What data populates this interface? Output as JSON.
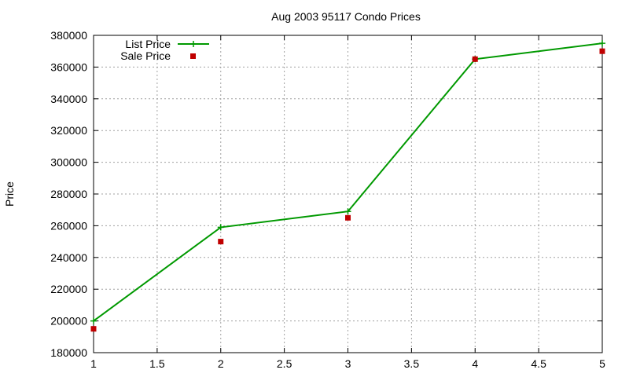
{
  "chart_data": {
    "type": "line",
    "title": "Aug 2003 95117 Condo Prices",
    "xlabel": "",
    "ylabel": "Price",
    "xlim": [
      1,
      5
    ],
    "ylim": [
      180000,
      380000
    ],
    "x_ticks": [
      "1",
      "1.5",
      "2",
      "2.5",
      "3",
      "3.5",
      "4",
      "4.5",
      "5"
    ],
    "y_ticks": [
      "180000",
      "200000",
      "220000",
      "240000",
      "260000",
      "280000",
      "300000",
      "320000",
      "340000",
      "360000",
      "380000"
    ],
    "grid": true,
    "legend_position": "top-left",
    "series": [
      {
        "name": "List Price",
        "style": "linespoints",
        "color": "#009900",
        "marker": "plus",
        "x": [
          1,
          2,
          3,
          4,
          5
        ],
        "y": [
          200000,
          259000,
          269000,
          365000,
          375000
        ]
      },
      {
        "name": "Sale Price",
        "style": "points",
        "color": "#c00000",
        "marker": "square",
        "x": [
          1,
          2,
          3,
          4,
          5
        ],
        "y": [
          195000,
          250000,
          265000,
          365000,
          370000
        ]
      }
    ]
  }
}
